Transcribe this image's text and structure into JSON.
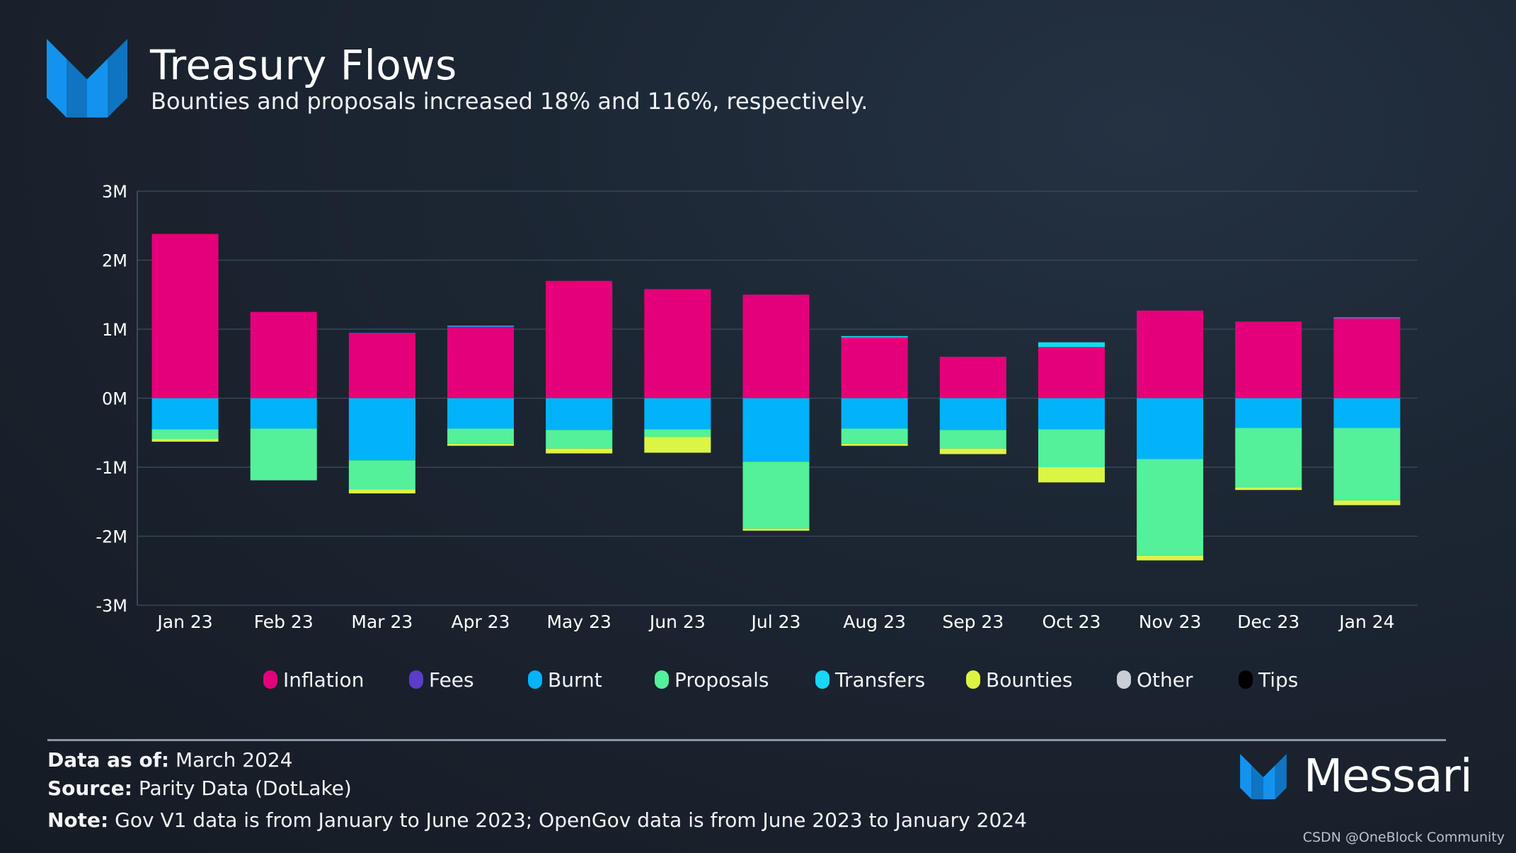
{
  "header": {
    "title": "Treasury Flows",
    "subtitle": "Bounties and proposals increased 18% and 116%, respectively."
  },
  "chart_data": {
    "type": "bar",
    "stacked": true,
    "categories": [
      "Jan 23",
      "Feb 23",
      "Mar 23",
      "Apr 23",
      "May 23",
      "Jun 23",
      "Jul 23",
      "Aug 23",
      "Sep 23",
      "Oct 23",
      "Nov 23",
      "Dec 23",
      "Jan 24"
    ],
    "ylim": [
      -3000000,
      3000000
    ],
    "yticks": [
      "3M",
      "2M",
      "1M",
      "0M",
      "-1M",
      "-2M",
      "-3M"
    ],
    "grid": true,
    "legend_position": "bottom",
    "series": [
      {
        "name": "Inflation",
        "color": "#e5007a",
        "values": [
          2380000,
          1250000,
          940000,
          1030000,
          1700000,
          1580000,
          1500000,
          880000,
          600000,
          740000,
          1270000,
          1110000,
          1160000
        ]
      },
      {
        "name": "Fees",
        "color": "#5a3dc8",
        "values": [
          0,
          0,
          10000,
          10000,
          0,
          0,
          0,
          0,
          0,
          0,
          0,
          0,
          0
        ]
      },
      {
        "name": "Burnt",
        "color": "#00b3fa",
        "values": [
          -450000,
          -440000,
          -900000,
          -440000,
          -460000,
          -450000,
          -920000,
          -440000,
          -460000,
          -450000,
          -880000,
          -430000,
          -430000
        ]
      },
      {
        "name": "Proposals",
        "color": "#54f09a",
        "values": [
          -140000,
          -750000,
          -420000,
          -220000,
          -270000,
          -110000,
          -970000,
          -220000,
          -270000,
          -550000,
          -1400000,
          -860000,
          -1050000
        ]
      },
      {
        "name": "Transfers",
        "color": "#17d8f5",
        "values": [
          0,
          0,
          0,
          10000,
          0,
          0,
          0,
          20000,
          0,
          70000,
          0,
          0,
          10000
        ]
      },
      {
        "name": "Bounties",
        "color": "#dcf542",
        "values": [
          -40000,
          0,
          -60000,
          -30000,
          -70000,
          -230000,
          -30000,
          -30000,
          -80000,
          -220000,
          -70000,
          -40000,
          -70000
        ]
      },
      {
        "name": "Other",
        "color": "#c9ced6",
        "values": [
          0,
          0,
          0,
          0,
          0,
          0,
          0,
          0,
          0,
          0,
          0,
          0,
          0
        ]
      },
      {
        "name": "Tips",
        "color": "#000000",
        "values": [
          0,
          0,
          0,
          0,
          0,
          0,
          0,
          0,
          0,
          0,
          0,
          0,
          0
        ]
      }
    ]
  },
  "footer": {
    "data_as_of_label": "Data as of:",
    "data_as_of_value": "March 2024",
    "source_label": "Source:",
    "source_value": "Parity Data (DotLake)",
    "note_label": "Note:",
    "note_value": "Gov V1 data is from January to June 2023; OpenGov data is from June 2023 to January 2024"
  },
  "brand": {
    "name": "Messari",
    "accent": "#1493ee"
  },
  "watermark": "CSDN @OneBlock Community"
}
